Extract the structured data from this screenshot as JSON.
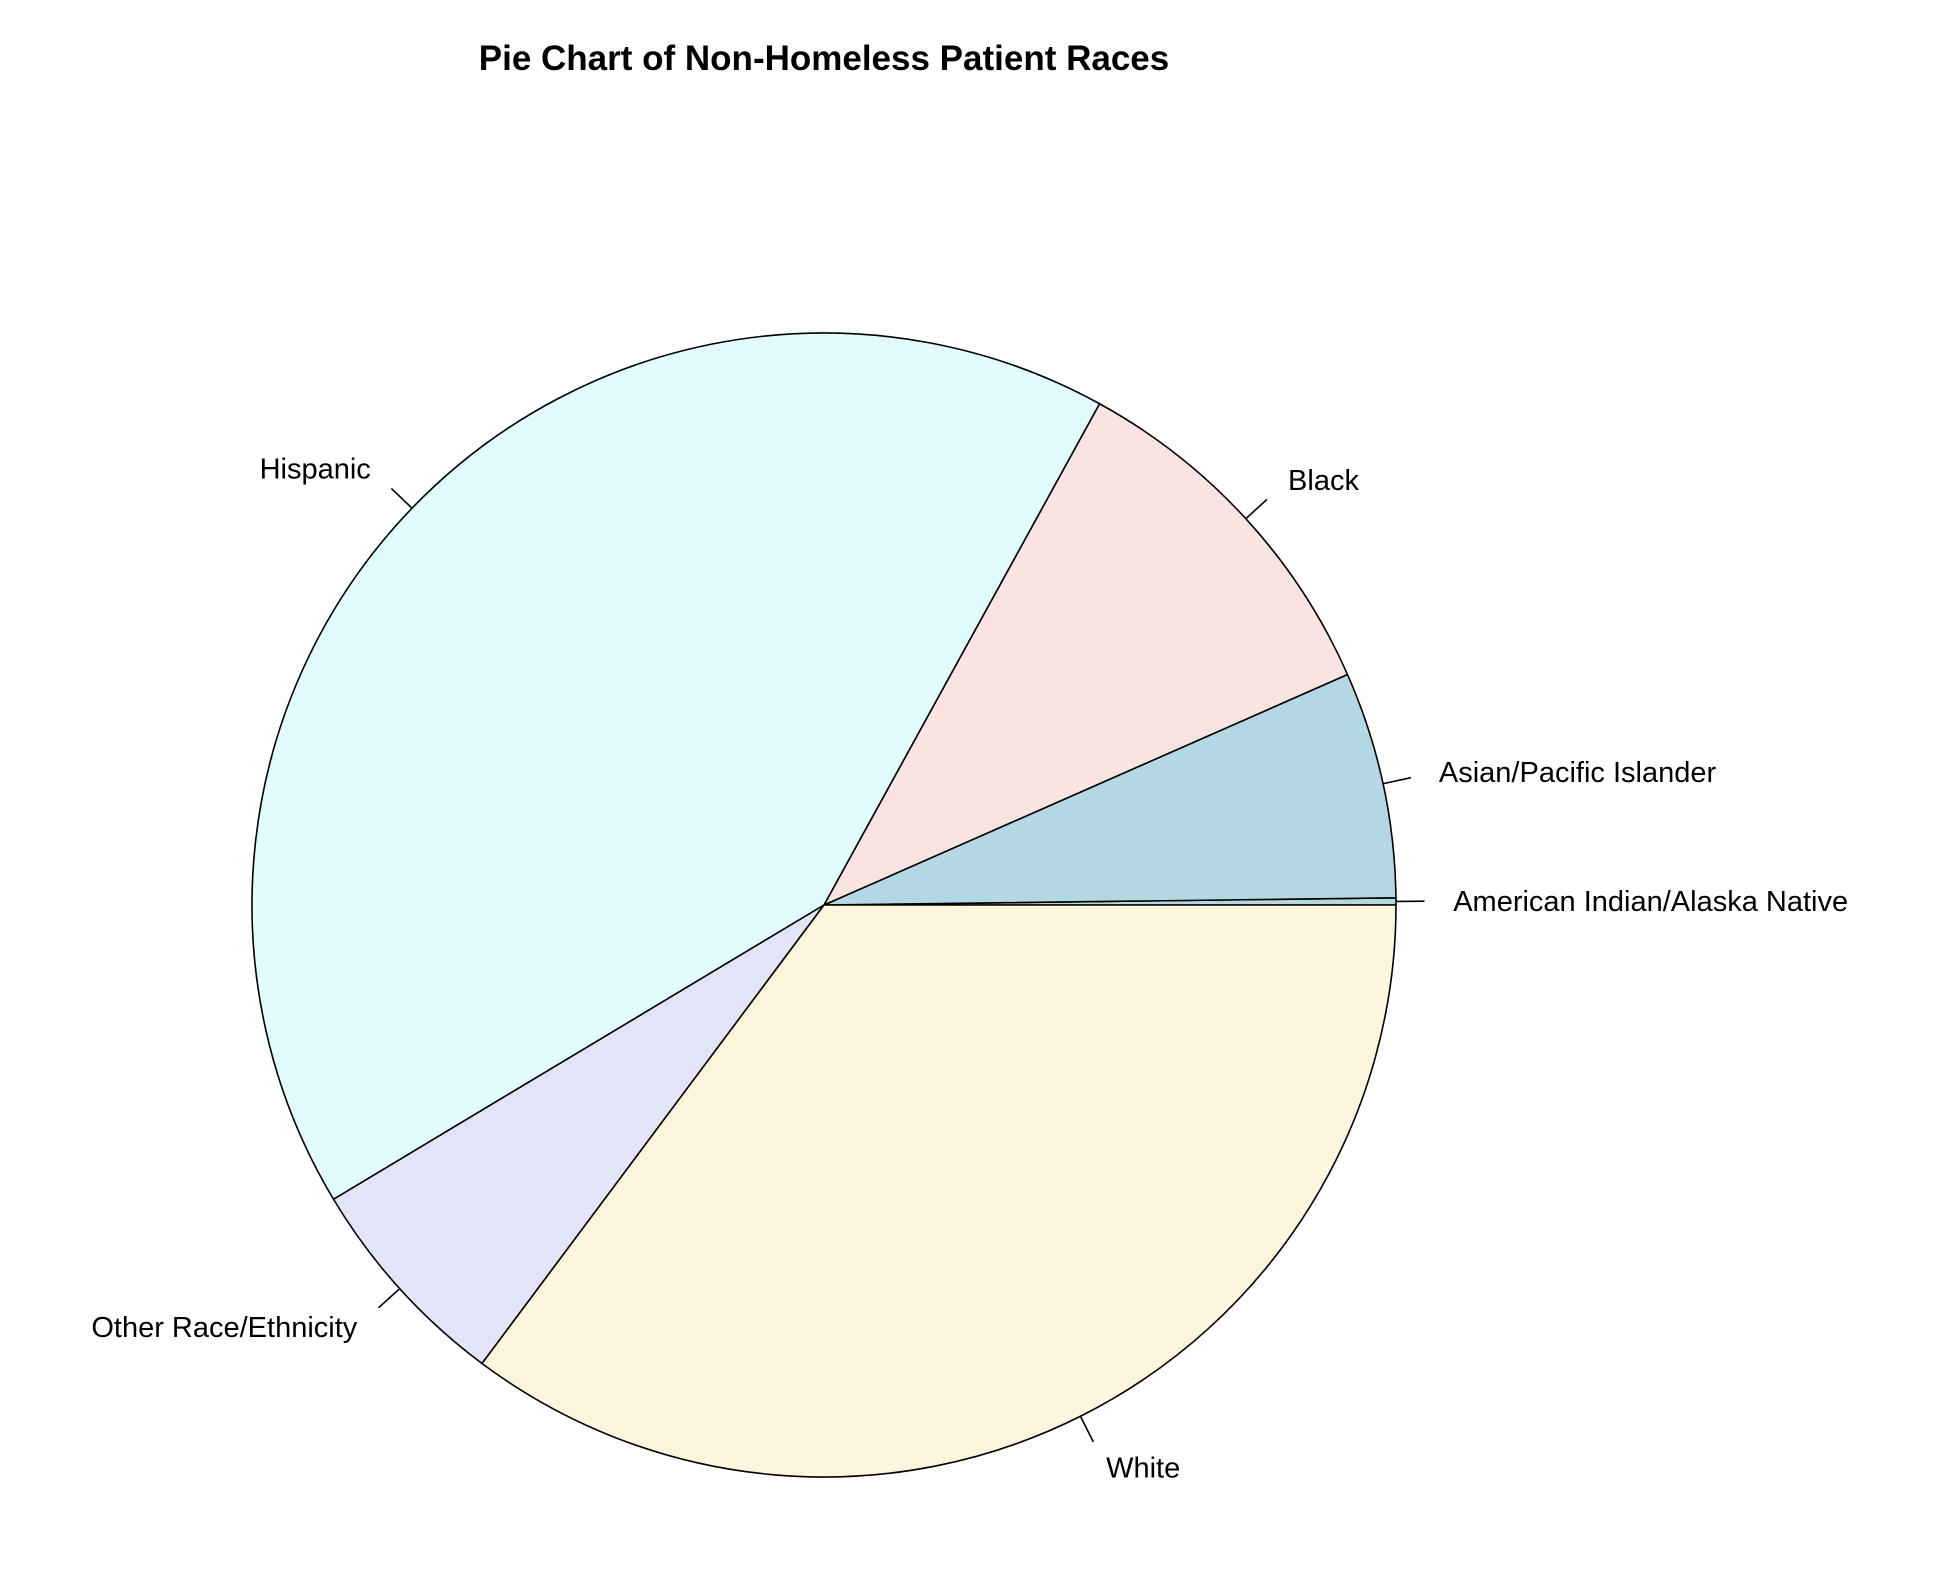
{
  "chart_data": {
    "type": "pie",
    "title": "Pie Chart of Non-Homeless Patient Races",
    "start_angle_deg": 0,
    "direction": "counterclockwise",
    "slices": [
      {
        "label": "American Indian/Alaska Native",
        "value": 0.2,
        "color": "#b4d8e3"
      },
      {
        "label": "Asian/Pacific Islander",
        "value": 6.4,
        "color": "#b4d8e3"
      },
      {
        "label": "Black",
        "value": 10.4,
        "color": "#f9e4e2"
      },
      {
        "label": "Hispanic",
        "value": 41.6,
        "color": "#e2fcfd"
      },
      {
        "label": "Other Race/Ethnicity",
        "value": 6.2,
        "color": "#e4e4f8"
      },
      {
        "label": "White",
        "value": 35.2,
        "color": "#fdf6dd"
      }
    ]
  }
}
